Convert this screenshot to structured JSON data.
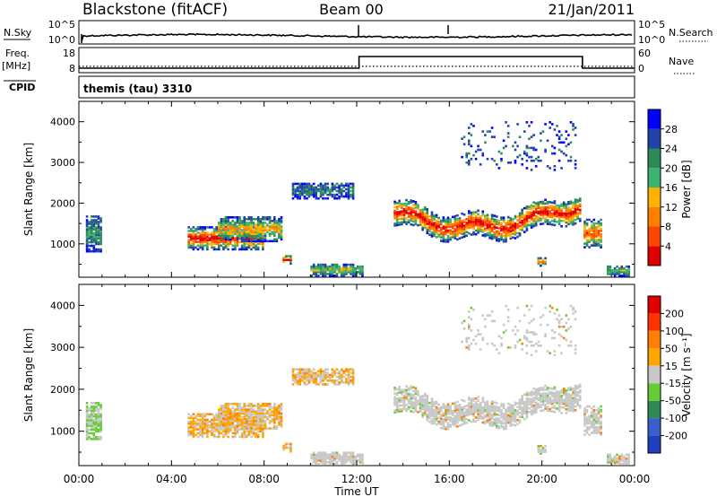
{
  "header": {
    "station": "Blackstone (fitACF)",
    "beam": "Beam 00",
    "date": "21/Jan/2011"
  },
  "top_panel": {
    "left_label": "N.Sky",
    "right_label": "N.Search",
    "left_ticks": [
      "10^5",
      "10^0"
    ],
    "right_ticks": [
      "10^5",
      "10^0"
    ]
  },
  "freq_panel": {
    "left_label_1": "Freq.",
    "left_label_2": "[MHz]",
    "left_ticks": [
      "18",
      "8"
    ],
    "right_label": "Nave",
    "right_ticks": [
      "60",
      "0"
    ],
    "cpid_label": "CPID",
    "cpid_text": "themis (tau) 3310"
  },
  "chart_data": [
    {
      "type": "heatmap",
      "name": "power",
      "ylabel": "Slant Range [km]",
      "yticks": [
        "4000",
        "3000",
        "2000",
        "1000"
      ],
      "colorbar_label": "Power [dB]",
      "colorbar_ticks": [
        "28",
        "24",
        "20",
        "16",
        "12",
        "8",
        "4"
      ],
      "colors": [
        "#0000ff",
        "#2244aa",
        "#2e8b57",
        "#3cb371",
        "#ffb300",
        "#ff7f00",
        "#ff4500",
        "#e00000"
      ]
    },
    {
      "type": "heatmap",
      "name": "velocity",
      "ylabel": "Slant Range [km]",
      "yticks": [
        "4000",
        "3000",
        "2000",
        "1000"
      ],
      "colorbar_label": "Velocity [m s⁻¹]",
      "colorbar_ticks": [
        "200",
        "100",
        "50",
        "15",
        "-15",
        "-50",
        "-100",
        "-200"
      ],
      "colors": [
        "#1f3fbf",
        "#3a5fcd",
        "#2e8b57",
        "#66cc33",
        "#c8c8c8",
        "#ffa500",
        "#ff7f00",
        "#ff3300",
        "#e00000"
      ]
    }
  ],
  "x_axis": {
    "ticks": [
      "00:00",
      "04:00",
      "08:00",
      "12:00",
      "16:00",
      "20:00",
      "00:00"
    ],
    "label": "Time UT"
  }
}
